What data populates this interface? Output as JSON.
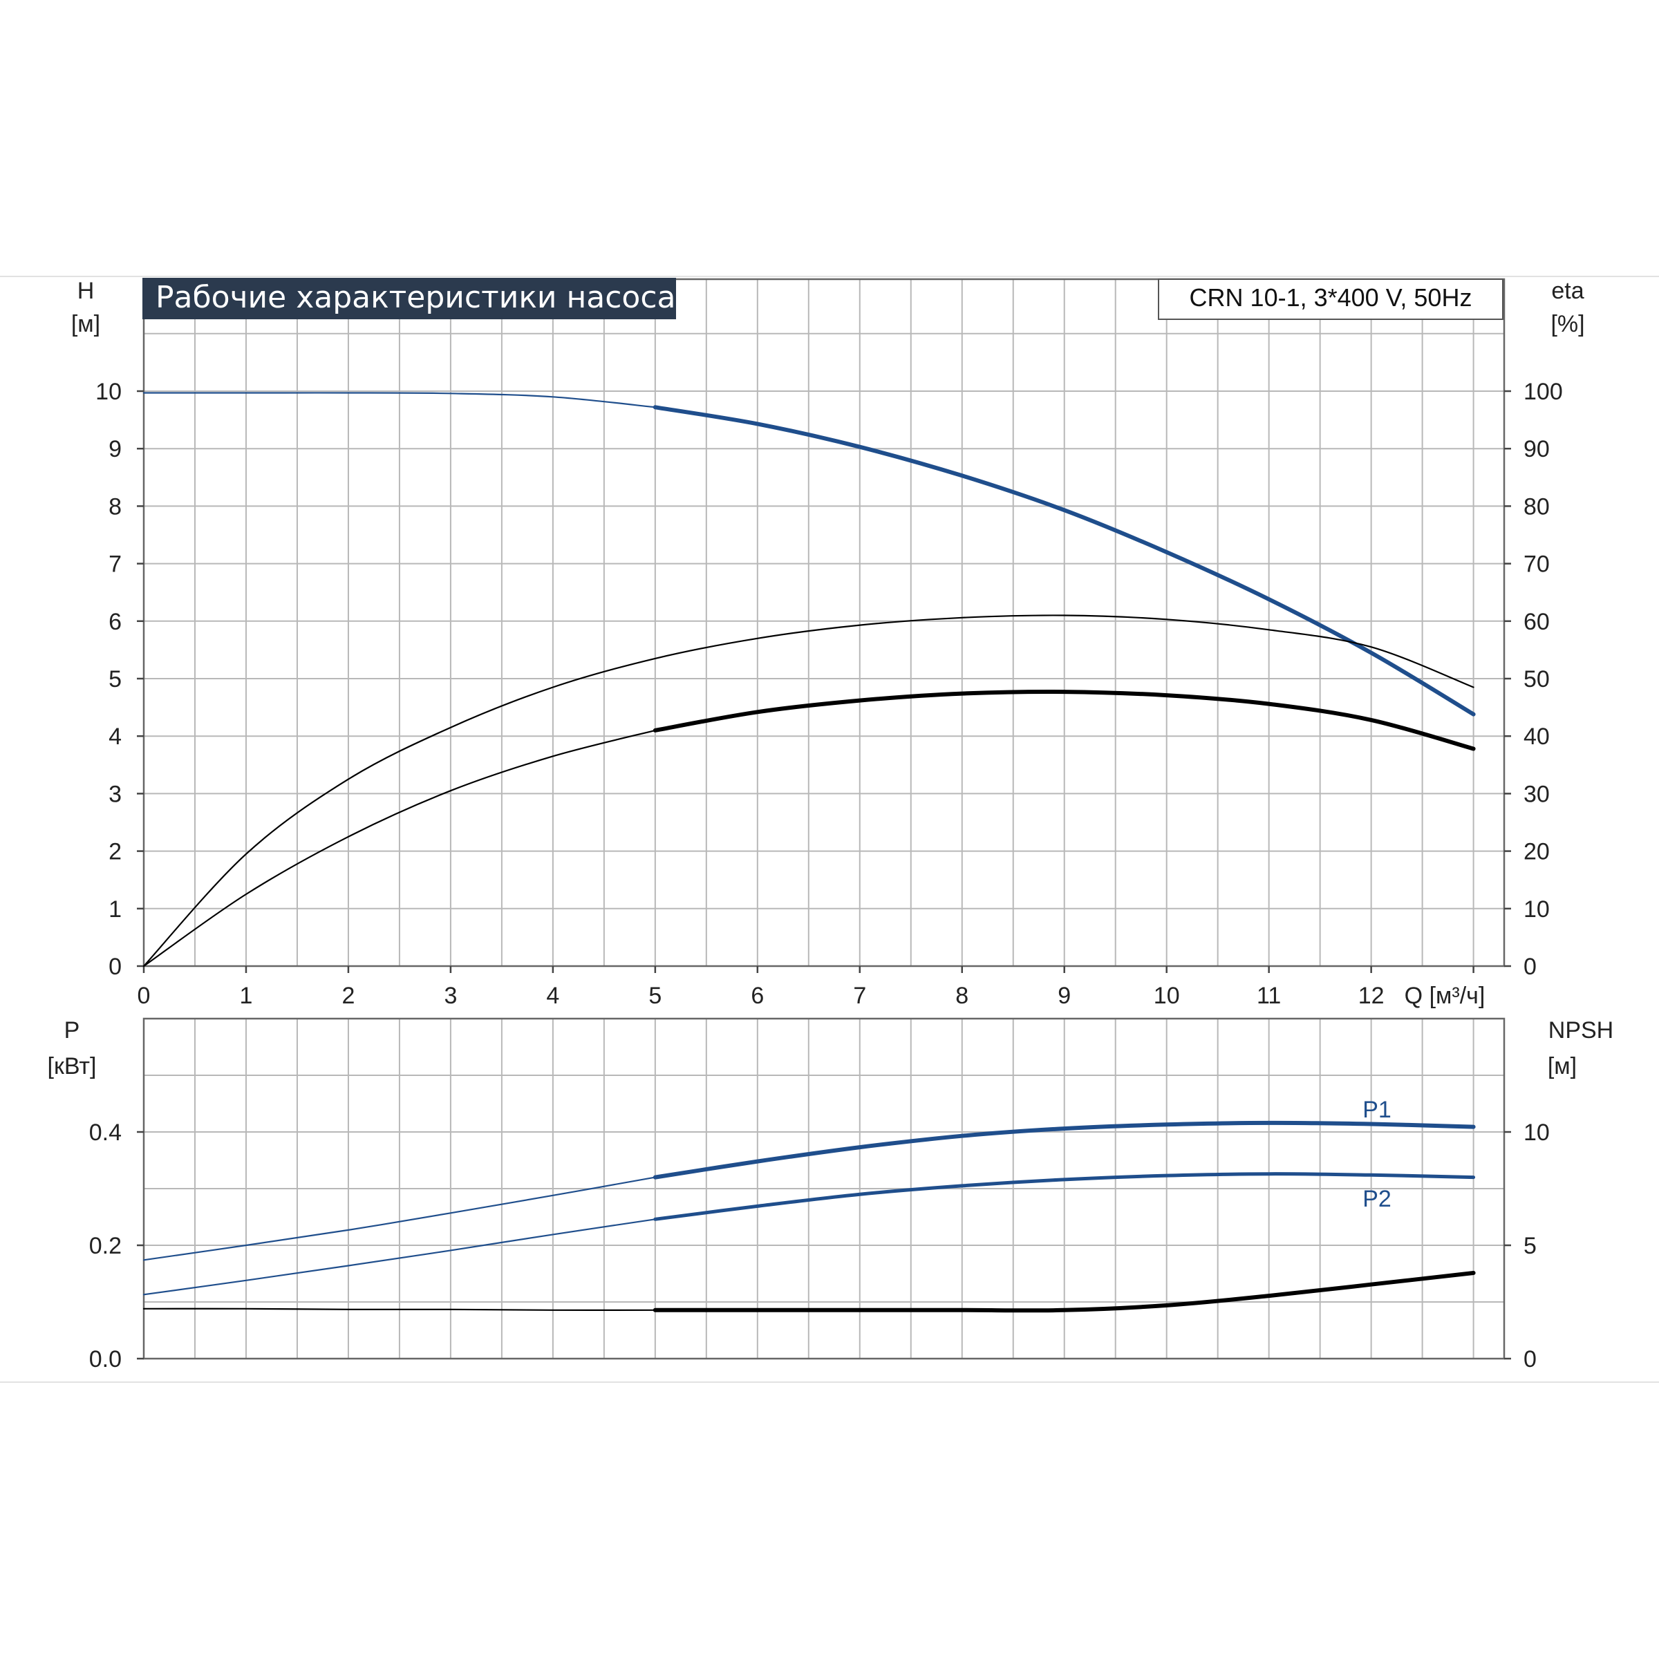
{
  "chart_data": [
    {
      "type": "line",
      "title": "Рабочие характеристики насоса",
      "model_label": "CRN 10-1, 3*400 V, 50Hz",
      "xlabel": "Q [м³/ч]",
      "xticks": [
        "0",
        "1",
        "2",
        "3",
        "4",
        "5",
        "6",
        "7",
        "8",
        "9",
        "10",
        "11",
        "12"
      ],
      "xlim": [
        0,
        13.3
      ],
      "y_left": {
        "label_name": "H",
        "label_unit": "[м]",
        "ticks": [
          "0",
          "1",
          "2",
          "3",
          "4",
          "5",
          "6",
          "7",
          "8",
          "9",
          "10"
        ],
        "lim": [
          0,
          10
        ]
      },
      "y_right": {
        "label_name": "eta",
        "label_unit": "[%]",
        "ticks": [
          "0",
          "10",
          "20",
          "30",
          "40",
          "50",
          "60",
          "70",
          "80",
          "90",
          "100"
        ],
        "lim": [
          0,
          100
        ]
      },
      "grid": true,
      "series": [
        {
          "axis": "H",
          "color": "#1f4e8c",
          "thin_until": 5,
          "x": [
            0,
            1,
            2,
            3,
            4,
            5,
            6,
            7,
            8,
            9,
            10,
            11,
            12,
            13
          ],
          "y": [
            9.97,
            9.97,
            9.97,
            9.96,
            9.9,
            9.72,
            9.43,
            9.03,
            8.53,
            7.93,
            7.2,
            6.38,
            5.45,
            4.38
          ]
        },
        {
          "axis": "eta",
          "color": "#000000",
          "thin_until": 13,
          "x": [
            0,
            1,
            2,
            3,
            4,
            5,
            6,
            7,
            8,
            9,
            10,
            11,
            12,
            13
          ],
          "y": [
            0,
            19.5,
            32.5,
            41.5,
            48.5,
            53.5,
            57,
            59.3,
            60.6,
            61,
            60.3,
            58.5,
            55.5,
            48.5
          ]
        },
        {
          "axis": "eta",
          "color": "#000000",
          "thin_until": 5,
          "x": [
            0,
            1,
            2,
            3,
            4,
            5,
            6,
            7,
            8,
            9,
            10,
            11,
            12,
            13
          ],
          "y": [
            0,
            12.5,
            22.5,
            30.5,
            36.5,
            41,
            44.2,
            46.2,
            47.4,
            47.7,
            47.1,
            45.6,
            42.8,
            37.8
          ]
        }
      ]
    },
    {
      "type": "line",
      "xlim": [
        0,
        13.3
      ],
      "y_left": {
        "label_name": "P",
        "label_unit": "[кВт]",
        "ticks": [
          "0.0",
          "0.2",
          "0.4"
        ],
        "lim": [
          0,
          0.6
        ]
      },
      "y_right": {
        "label_name": "NPSH",
        "label_unit": "[м]",
        "ticks": [
          "0",
          "5",
          "10"
        ],
        "lim": [
          0,
          15
        ]
      },
      "grid": true,
      "series": [
        {
          "name": "P1",
          "axis": "P",
          "color": "#1f4e8c",
          "thin_until": 5,
          "x": [
            0,
            1,
            2,
            3,
            4,
            5,
            6,
            7,
            8,
            9,
            10,
            11,
            12,
            13
          ],
          "y": [
            0.174,
            0.2,
            0.227,
            0.257,
            0.288,
            0.32,
            0.348,
            0.373,
            0.393,
            0.406,
            0.413,
            0.416,
            0.414,
            0.409
          ]
        },
        {
          "name": "P2",
          "axis": "P",
          "color": "#1f4e8c",
          "thin_until": 5,
          "x": [
            0,
            1,
            2,
            3,
            4,
            5,
            6,
            7,
            8,
            9,
            10,
            11,
            12,
            13
          ],
          "y": [
            0.113,
            0.138,
            0.164,
            0.191,
            0.219,
            0.246,
            0.269,
            0.29,
            0.305,
            0.316,
            0.323,
            0.326,
            0.324,
            0.32
          ]
        },
        {
          "axis": "NPSH",
          "color": "#000000",
          "thin_until": 5,
          "x": [
            0,
            1,
            2,
            3,
            4,
            5,
            6,
            7,
            8,
            9,
            10,
            11,
            12,
            13
          ],
          "y": [
            2.2,
            2.2,
            2.17,
            2.17,
            2.14,
            2.14,
            2.14,
            2.14,
            2.14,
            2.14,
            2.35,
            2.77,
            3.27,
            3.78
          ]
        }
      ]
    }
  ]
}
